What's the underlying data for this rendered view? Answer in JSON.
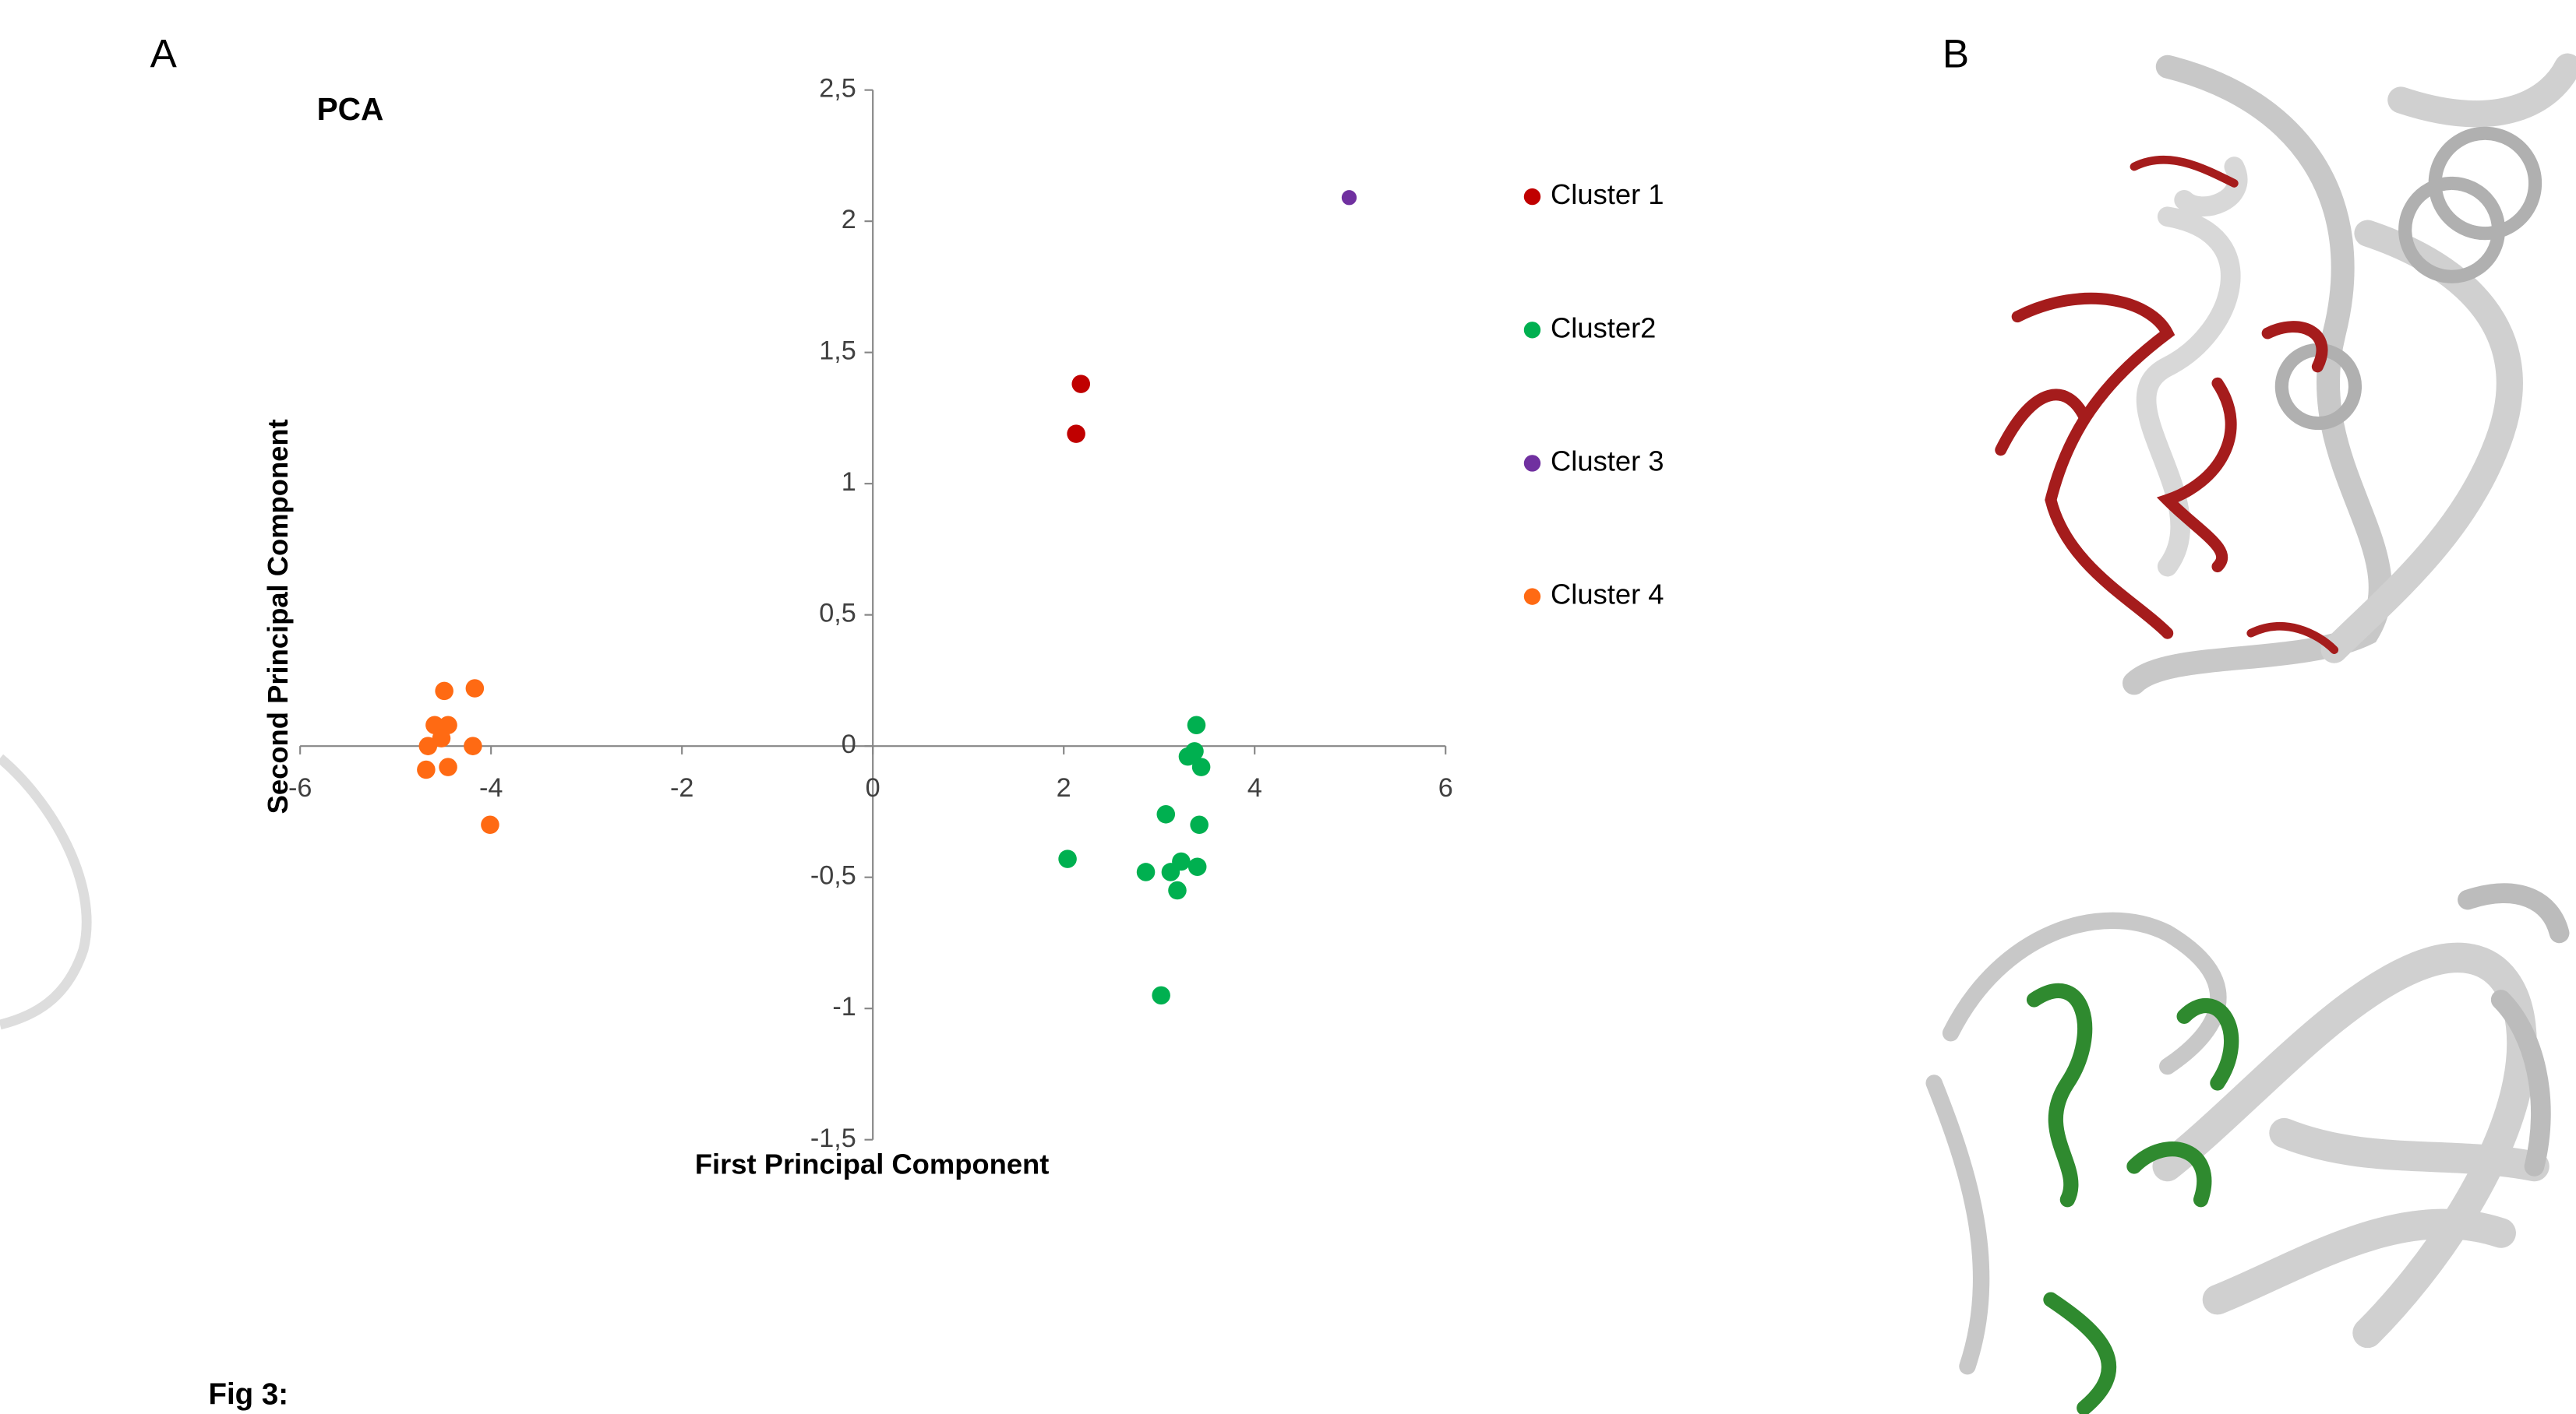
{
  "panel_labels": [
    "A",
    "B"
  ],
  "caption": "Fig 3:",
  "chart_data": {
    "type": "scatter",
    "title": "PCA",
    "x_label": "First Principal Component",
    "y_label": "Second Principal Component",
    "xlim": [
      -6,
      6
    ],
    "ylim": [
      -1.5,
      2.5
    ],
    "xticks": [
      -6,
      -4,
      -2,
      0,
      2,
      4,
      6
    ],
    "yticks": [
      {
        "value": -1.5,
        "label": "-1,5"
      },
      -1,
      {
        "value": -0.5,
        "label": "-0,5"
      },
      0,
      {
        "value": 0.5,
        "label": "0,5"
      },
      1,
      {
        "value": 1.5,
        "label": "1,5"
      },
      2,
      {
        "value": 2.5,
        "label": "2,5"
      }
    ],
    "grid": false,
    "legend": "right",
    "series": [
      {
        "name": "Cluster 1",
        "color": "#c00000",
        "x": [
          2.18,
          2.13
        ],
        "y": [
          1.38,
          1.19
        ]
      },
      {
        "name": "Cluster2",
        "color": "#00b050",
        "x": [
          3.39,
          3.37,
          3.3,
          3.44,
          3.07,
          3.42,
          2.04,
          2.86,
          3.23,
          3.4,
          3.12,
          3.19,
          3.02
        ],
        "y": [
          0.08,
          -0.02,
          -0.04,
          -0.08,
          -0.26,
          -0.3,
          -0.43,
          -0.48,
          -0.44,
          -0.46,
          -0.48,
          -0.55,
          -0.95
        ]
      },
      {
        "name": "Cluster 3",
        "color": "#7030a0",
        "x": [
          4.99
        ],
        "y": [
          2.09
        ]
      },
      {
        "name": "Cluster 4",
        "color": "#ff6a13",
        "x": [
          -4.49,
          -4.17,
          -4.59,
          -4.45,
          -4.52,
          -4.66,
          -4.19,
          -4.68,
          -4.45,
          -4.01
        ],
        "y": [
          0.21,
          0.22,
          0.08,
          0.08,
          0.03,
          0.0,
          0.0,
          -0.09,
          -0.08,
          -0.3
        ]
      }
    ]
  }
}
